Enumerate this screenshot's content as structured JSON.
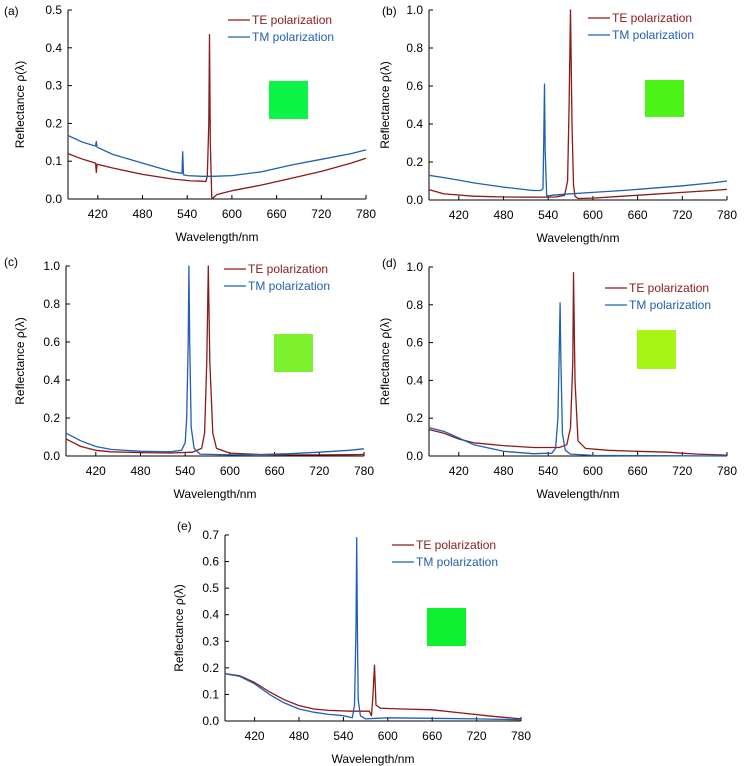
{
  "colors": {
    "te": "#8B1A1A",
    "tm": "#1F5FB4",
    "axis": "#000000"
  },
  "chart_data": [
    {
      "type": "line",
      "panel_label": "(a)",
      "xlabel": "Wavelength/nm",
      "ylabel": "Reflectance ρ(λ)",
      "xlim": [
        380,
        780
      ],
      "ylim": [
        0,
        0.5
      ],
      "xticks": [
        420,
        480,
        540,
        600,
        660,
        720,
        780
      ],
      "xtick_labels": [
        "420",
        "480",
        "540",
        "600",
        "660",
        "720",
        "780"
      ],
      "yticks": [
        0,
        0.1,
        0.2,
        0.3,
        0.4,
        0.5
      ],
      "ytick_labels": [
        "0.0",
        "0.1",
        "0.2",
        "0.3",
        "0.4",
        "0.5"
      ],
      "legend": [
        "TE polarization",
        "TM polarization"
      ],
      "legend_position": "top-right",
      "swatch_color": "#0BF547",
      "series": [
        {
          "name": "TE polarization",
          "color": "#8B1A1A",
          "x": [
            380,
            400,
            417,
            418,
            419,
            440,
            480,
            520,
            545,
            560,
            565,
            567,
            569,
            570,
            571,
            573,
            576,
            580,
            600,
            640,
            680,
            720,
            760,
            780
          ],
          "y": [
            0.12,
            0.105,
            0.095,
            0.07,
            0.092,
            0.082,
            0.065,
            0.053,
            0.048,
            0.047,
            0.046,
            0.06,
            0.2,
            0.435,
            0.15,
            0.0,
            0.005,
            0.012,
            0.022,
            0.037,
            0.055,
            0.073,
            0.095,
            0.108
          ]
        },
        {
          "name": "TM polarization",
          "color": "#1F5FB4",
          "x": [
            380,
            400,
            417,
            418,
            419,
            440,
            480,
            520,
            533,
            534,
            535,
            540,
            560,
            575,
            600,
            640,
            680,
            720,
            760,
            780
          ],
          "y": [
            0.168,
            0.15,
            0.14,
            0.152,
            0.137,
            0.118,
            0.095,
            0.072,
            0.068,
            0.125,
            0.064,
            0.062,
            0.06,
            0.06,
            0.062,
            0.072,
            0.09,
            0.105,
            0.12,
            0.13
          ]
        }
      ]
    },
    {
      "type": "line",
      "panel_label": "(b)",
      "xlabel": "Wavelength/nm",
      "ylabel": "Reflectance ρ(λ)",
      "xlim": [
        380,
        780
      ],
      "ylim": [
        0,
        1.0
      ],
      "xticks": [
        420,
        480,
        540,
        600,
        660,
        720,
        780
      ],
      "xtick_labels": [
        "420",
        "480",
        "540",
        "600",
        "660",
        "720",
        "780"
      ],
      "yticks": [
        0,
        0.2,
        0.4,
        0.6,
        0.8,
        1.0
      ],
      "ytick_labels": [
        "0.0",
        "0.2",
        "0.4",
        "0.6",
        "0.8",
        "1.0"
      ],
      "legend": [
        "TE polarization",
        "TM polarization"
      ],
      "legend_position": "top-right",
      "swatch_color": "#4BF317",
      "series": [
        {
          "name": "TE polarization",
          "color": "#8B1A1A",
          "x": [
            380,
            400,
            440,
            480,
            520,
            550,
            562,
            566,
            568,
            570,
            572,
            574,
            576,
            580,
            600,
            640,
            680,
            720,
            760,
            780
          ],
          "y": [
            0.055,
            0.032,
            0.02,
            0.016,
            0.015,
            0.016,
            0.025,
            0.1,
            0.5,
            1.0,
            0.4,
            0.08,
            0.02,
            0.008,
            0.01,
            0.02,
            0.03,
            0.04,
            0.05,
            0.056
          ]
        },
        {
          "name": "TM polarization",
          "color": "#1F5FB4",
          "x": [
            380,
            400,
            420,
            440,
            480,
            520,
            530,
            533,
            534,
            535,
            536,
            538,
            545,
            560,
            600,
            640,
            680,
            720,
            760,
            780
          ],
          "y": [
            0.13,
            0.118,
            0.105,
            0.09,
            0.068,
            0.05,
            0.05,
            0.06,
            0.3,
            0.61,
            0.25,
            0.02,
            0.025,
            0.03,
            0.04,
            0.05,
            0.062,
            0.075,
            0.09,
            0.1
          ]
        }
      ]
    },
    {
      "type": "line",
      "panel_label": "(c)",
      "xlabel": "Wavelength/nm",
      "ylabel": "Reflectance ρ(λ)",
      "xlim": [
        380,
        780
      ],
      "ylim": [
        0,
        1.0
      ],
      "xticks": [
        420,
        480,
        540,
        600,
        660,
        720,
        780
      ],
      "xtick_labels": [
        "420",
        "480",
        "540",
        "600",
        "660",
        "720",
        "780"
      ],
      "yticks": [
        0,
        0.2,
        0.4,
        0.6,
        0.8,
        1.0
      ],
      "ytick_labels": [
        "0.0",
        "0.2",
        "0.4",
        "0.6",
        "0.8",
        "1.0"
      ],
      "legend": [
        "TE polarization",
        "TM polarization"
      ],
      "legend_position": "top-right",
      "swatch_color": "#7DF12E",
      "series": [
        {
          "name": "TE polarization",
          "color": "#8B1A1A",
          "x": [
            380,
            400,
            420,
            440,
            480,
            520,
            550,
            562,
            566,
            569,
            571,
            573,
            577,
            582,
            600,
            640,
            680,
            720,
            760,
            780
          ],
          "y": [
            0.09,
            0.05,
            0.03,
            0.022,
            0.018,
            0.016,
            0.02,
            0.04,
            0.12,
            0.5,
            1.0,
            0.5,
            0.12,
            0.04,
            0.015,
            0.008,
            0.006,
            0.006,
            0.007,
            0.008
          ]
        },
        {
          "name": "TM polarization",
          "color": "#1F5FB4",
          "x": [
            380,
            400,
            420,
            440,
            480,
            520,
            535,
            540,
            542,
            544,
            545,
            546,
            548,
            552,
            560,
            600,
            640,
            680,
            720,
            760,
            780
          ],
          "y": [
            0.12,
            0.08,
            0.05,
            0.035,
            0.025,
            0.022,
            0.03,
            0.07,
            0.2,
            0.6,
            1.0,
            0.6,
            0.15,
            0.04,
            0.01,
            0.006,
            0.008,
            0.012,
            0.02,
            0.03,
            0.038
          ]
        }
      ]
    },
    {
      "type": "line",
      "panel_label": "(d)",
      "xlabel": "Wavelength/nm",
      "ylabel": "Reflectance ρ(λ)",
      "xlim": [
        380,
        780
      ],
      "ylim": [
        0,
        1.0
      ],
      "xticks": [
        420,
        480,
        540,
        600,
        660,
        720,
        780
      ],
      "xtick_labels": [
        "420",
        "480",
        "540",
        "600",
        "660",
        "720",
        "780"
      ],
      "yticks": [
        0,
        0.2,
        0.4,
        0.6,
        0.8,
        1.0
      ],
      "ytick_labels": [
        "0.0",
        "0.2",
        "0.4",
        "0.6",
        "0.8",
        "1.0"
      ],
      "legend": [
        "TE polarization",
        "TM polarization"
      ],
      "legend_position": "top-right",
      "swatch_color": "#A6F512",
      "series": [
        {
          "name": "TE polarization",
          "color": "#8B1A1A",
          "x": [
            380,
            400,
            420,
            440,
            480,
            520,
            555,
            565,
            570,
            573,
            574,
            576,
            580,
            590,
            620,
            660,
            700,
            740,
            780
          ],
          "y": [
            0.14,
            0.12,
            0.09,
            0.07,
            0.055,
            0.045,
            0.045,
            0.06,
            0.15,
            0.5,
            0.97,
            0.4,
            0.08,
            0.04,
            0.03,
            0.025,
            0.02,
            0.01,
            0.005
          ]
        },
        {
          "name": "TM polarization",
          "color": "#1F5FB4",
          "x": [
            380,
            400,
            420,
            440,
            480,
            520,
            545,
            550,
            553,
            555,
            556,
            557,
            559,
            563,
            570,
            600,
            660,
            720,
            780
          ],
          "y": [
            0.15,
            0.13,
            0.095,
            0.06,
            0.025,
            0.012,
            0.015,
            0.04,
            0.2,
            0.6,
            0.81,
            0.5,
            0.12,
            0.03,
            0.01,
            0.003,
            0.002,
            0.001,
            0.0
          ]
        }
      ]
    },
    {
      "type": "line",
      "panel_label": "(e)",
      "xlabel": "Wavelength/nm",
      "ylabel": "Reflectance ρ(λ)",
      "xlim": [
        380,
        780
      ],
      "ylim": [
        0,
        0.7
      ],
      "xticks": [
        420,
        480,
        540,
        600,
        660,
        720,
        780
      ],
      "xtick_labels": [
        "420",
        "480",
        "540",
        "600",
        "660",
        "720",
        "780"
      ],
      "yticks": [
        0,
        0.1,
        0.2,
        0.3,
        0.4,
        0.5,
        0.6,
        0.7
      ],
      "ytick_labels": [
        "0.0",
        "0.1",
        "0.2",
        "0.3",
        "0.4",
        "0.5",
        "0.6",
        "0.7"
      ],
      "legend": [
        "TE polarization",
        "TM polarization"
      ],
      "legend_position": "top-right",
      "swatch_color": "#0CF02D",
      "series": [
        {
          "name": "TE polarization",
          "color": "#8B1A1A",
          "x": [
            380,
            400,
            420,
            440,
            460,
            480,
            500,
            520,
            550,
            575,
            578,
            580,
            582,
            584,
            590,
            620,
            660,
            700,
            740,
            780
          ],
          "y": [
            0.178,
            0.17,
            0.145,
            0.11,
            0.08,
            0.058,
            0.045,
            0.04,
            0.037,
            0.037,
            0.02,
            0.1,
            0.21,
            0.06,
            0.048,
            0.045,
            0.042,
            0.03,
            0.018,
            0.008
          ]
        },
        {
          "name": "TM polarization",
          "color": "#1F5FB4",
          "x": [
            380,
            400,
            420,
            440,
            460,
            480,
            500,
            520,
            540,
            552,
            555,
            557,
            558,
            559,
            560,
            563,
            570,
            600,
            660,
            720,
            780
          ],
          "y": [
            0.178,
            0.168,
            0.14,
            0.1,
            0.068,
            0.045,
            0.033,
            0.025,
            0.02,
            0.012,
            0.06,
            0.35,
            0.69,
            0.3,
            0.08,
            0.02,
            0.008,
            0.012,
            0.01,
            0.008,
            0.005
          ]
        }
      ]
    }
  ]
}
